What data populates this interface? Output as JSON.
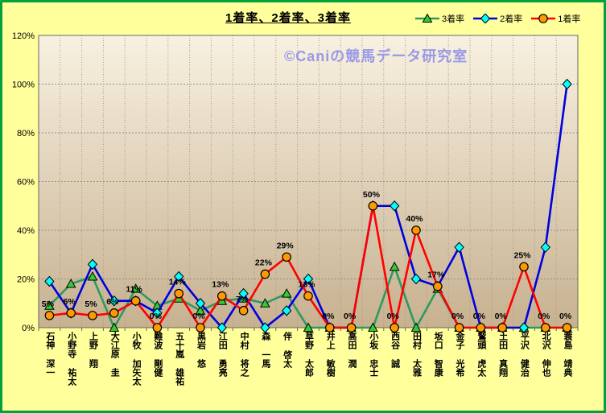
{
  "title": "1着率、2着率、3着率",
  "watermark": "©Caniの競馬データ研究室",
  "colors": {
    "background": "#FFFF9C",
    "frame_border": "#00A23C",
    "plot_gradient_top": "#F8F1E1",
    "plot_gradient_bottom": "#C7B190",
    "plot_border": "#666666",
    "grid_horizontal": "#909090",
    "grid_vertical": "#A89B82",
    "series_3rd_line": "#2E9960",
    "series_3rd_marker": "#33CC33",
    "series_2nd_line": "#0000E0",
    "series_2nd_marker": "#00FFFF",
    "series_1st_line": "#FF0000",
    "series_1st_marker": "#FF9900",
    "watermark_color": "#9190E8"
  },
  "chart_data": {
    "type": "line",
    "title": "1着率、2着率、3着率",
    "xlabel": "",
    "ylabel": "",
    "ylim": [
      0,
      120
    ],
    "ytick_labels": [
      "0%",
      "20%",
      "40%",
      "60%",
      "80%",
      "100%",
      "120%"
    ],
    "grid": true,
    "legend_position": "top-right",
    "categories": [
      "石神 深一",
      "小野寺 祐太",
      "上野 翔",
      "大江原 圭",
      "小牧 加矢太",
      "難波 剛健",
      "五十嵐 雄祐",
      "黒岩 悠",
      "江田 勇亮",
      "中村 将之",
      "森 一馬",
      "伴 啓太",
      "草野 太郎",
      "井上 敏樹",
      "高田 潤",
      "小坂 忠士",
      "西谷 誠",
      "田村 太雅",
      "坂口 智康",
      "金子 光希",
      "鷲頭 虎太",
      "土田 真翔",
      "平沢 健治",
      "北沢 伸也",
      "蓑島 靖典"
    ],
    "series": [
      {
        "name": "3着率",
        "marker": "triangle",
        "line_color": "#2E9960",
        "marker_fill": "#33CC33",
        "values": [
          9,
          18,
          21,
          0,
          16,
          9,
          12,
          7,
          11,
          12,
          10,
          14,
          0,
          0,
          0,
          0,
          25,
          0,
          16,
          0,
          0,
          0,
          0,
          0,
          0
        ]
      },
      {
        "name": "2着率",
        "marker": "diamond",
        "line_color": "#0000E0",
        "marker_fill": "#00FFFF",
        "values": [
          19,
          6,
          26,
          11,
          11,
          6,
          21,
          10,
          0,
          14,
          0,
          7,
          20,
          0,
          0,
          50,
          50,
          20,
          17,
          33,
          0,
          0,
          0,
          33,
          100
        ]
      },
      {
        "name": "1着率",
        "marker": "circle",
        "line_color": "#FF0000",
        "marker_fill": "#FF9900",
        "values": [
          5,
          6,
          5,
          6,
          11,
          0,
          14,
          0,
          13,
          7,
          22,
          29,
          13,
          0,
          0,
          50,
          0,
          40,
          17,
          0,
          0,
          0,
          25,
          0,
          0
        ],
        "data_labels": [
          "5%",
          "6%",
          "5%",
          "6%",
          "11%",
          "0%",
          "14%",
          "0%",
          "13%",
          "7%",
          "22%",
          "29%",
          "13%",
          "0%",
          "0%",
          "50%",
          "0%",
          "40%",
          "17%",
          "0%",
          "0%",
          "0%",
          "25%",
          "0%",
          "0%"
        ]
      }
    ]
  }
}
